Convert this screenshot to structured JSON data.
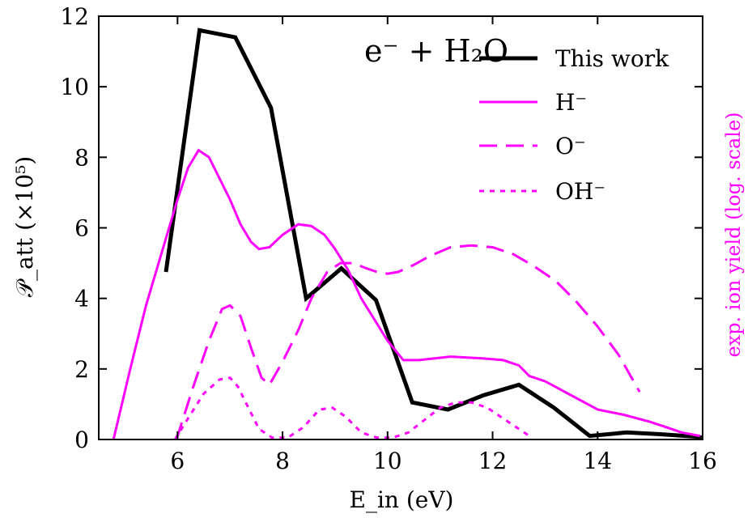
{
  "chart_data": {
    "type": "line",
    "title": "e⁻ + H₂O",
    "xlabel": "E_in (eV)",
    "ylabel": "𝒫_att (×10⁵)",
    "y2label": "exp. ion yield (log. scale)",
    "xlim": [
      4.5,
      16
    ],
    "ylim": [
      0,
      12
    ],
    "xticks": [
      6,
      8,
      10,
      12,
      14,
      16
    ],
    "yticks": [
      0,
      2,
      4,
      6,
      8,
      10,
      12
    ],
    "grid": false,
    "legend_position": "top-right",
    "series": [
      {
        "name": "This work",
        "color": "#000000",
        "dash": "solid",
        "width": 5,
        "x": [
          5.78,
          6.42,
          7.1,
          7.78,
          8.45,
          9.12,
          9.78,
          10.47,
          11.15,
          11.82,
          12.5,
          13.17,
          13.85,
          14.55,
          15.2,
          15.87,
          16.0
        ],
        "y": [
          4.75,
          11.6,
          11.4,
          9.4,
          4.0,
          4.85,
          3.95,
          1.05,
          0.85,
          1.25,
          1.55,
          0.9,
          0.1,
          0.2,
          0.15,
          0.08,
          0.05
        ]
      },
      {
        "name": "H⁻",
        "color": "#ff00ff",
        "dash": "solid",
        "width": 3,
        "x": [
          4.78,
          5.1,
          5.4,
          5.7,
          6.0,
          6.2,
          6.4,
          6.6,
          6.8,
          7.0,
          7.2,
          7.4,
          7.55,
          7.75,
          8.0,
          8.3,
          8.55,
          8.8,
          9.0,
          9.25,
          9.5,
          9.75,
          10.0,
          10.3,
          10.6,
          11.2,
          11.8,
          12.2,
          12.5,
          12.7,
          13.0,
          13.5,
          14.0,
          14.5,
          15.0,
          15.3,
          15.6,
          15.95
        ],
        "y": [
          0.0,
          2.0,
          3.8,
          5.3,
          6.8,
          7.7,
          8.2,
          8.0,
          7.4,
          6.8,
          6.1,
          5.6,
          5.4,
          5.45,
          5.8,
          6.1,
          6.05,
          5.8,
          5.4,
          4.8,
          4.0,
          3.4,
          2.8,
          2.25,
          2.25,
          2.35,
          2.3,
          2.25,
          2.1,
          1.8,
          1.65,
          1.25,
          0.85,
          0.7,
          0.5,
          0.35,
          0.2,
          0.1
        ]
      },
      {
        "name": "O⁻",
        "color": "#ff00ff",
        "dash": "long-dash",
        "width": 3,
        "x": [
          5.98,
          6.3,
          6.6,
          6.85,
          7.0,
          7.2,
          7.4,
          7.6,
          7.75,
          8.0,
          8.3,
          8.55,
          8.85,
          9.1,
          9.35,
          9.6,
          9.8,
          10.0,
          10.2,
          10.5,
          10.8,
          11.2,
          11.6,
          12.0,
          12.4,
          12.8,
          13.2,
          13.6,
          14.0,
          14.4,
          14.8
        ],
        "y": [
          0.0,
          1.5,
          2.8,
          3.7,
          3.8,
          3.5,
          2.6,
          1.75,
          1.55,
          2.2,
          3.1,
          4.0,
          4.75,
          5.0,
          5.0,
          4.85,
          4.75,
          4.7,
          4.75,
          4.95,
          5.2,
          5.45,
          5.5,
          5.45,
          5.25,
          4.9,
          4.5,
          3.9,
          3.2,
          2.4,
          1.35
        ]
      },
      {
        "name": "OH⁻",
        "color": "#ff00ff",
        "dash": "dotted",
        "width": 3,
        "x": [
          5.95,
          6.2,
          6.5,
          6.8,
          7.0,
          7.15,
          7.35,
          7.55,
          7.8,
          8.1,
          8.4,
          8.7,
          8.95,
          9.2,
          9.5,
          9.8,
          10.1,
          10.4,
          10.7,
          11.0,
          11.3,
          11.6,
          11.9,
          12.2,
          12.5,
          12.7
        ],
        "y": [
          0.0,
          0.6,
          1.3,
          1.7,
          1.75,
          1.5,
          0.9,
          0.3,
          0.05,
          0.05,
          0.35,
          0.85,
          0.9,
          0.65,
          0.2,
          0.05,
          0.05,
          0.2,
          0.55,
          0.9,
          1.05,
          1.05,
          0.9,
          0.6,
          0.3,
          0.1
        ]
      }
    ]
  },
  "axes": {
    "x_ticks": [
      "6",
      "8",
      "10",
      "12",
      "14",
      "16"
    ],
    "y_ticks": [
      "0",
      "2",
      "4",
      "6",
      "8",
      "10",
      "12"
    ]
  }
}
